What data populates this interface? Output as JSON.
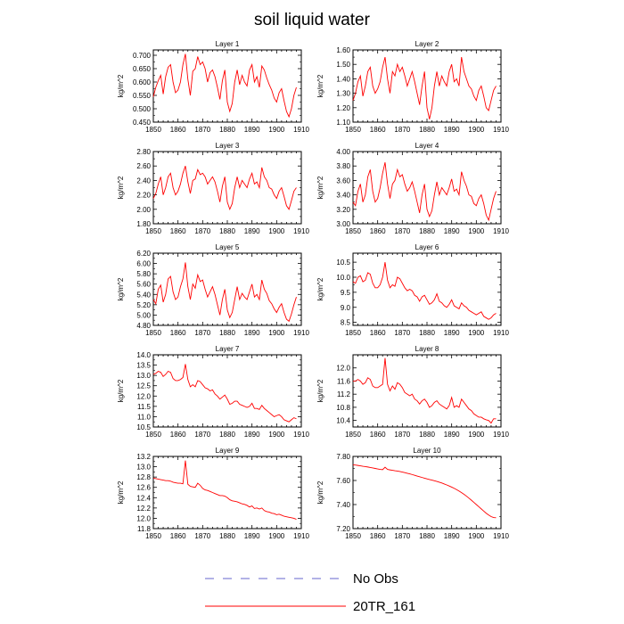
{
  "title": "soil liquid water",
  "line_color": "#ff0000",
  "obs_color": "#6666cc",
  "legend": {
    "obs_label": "No Obs",
    "model_label": "20TR_161"
  },
  "chart_data": [
    {
      "type": "line",
      "title": "Layer 1",
      "ylabel": "kg/m^2",
      "xlim": [
        1850,
        1910
      ],
      "ylim": [
        0.45,
        0.72
      ],
      "xticks": [
        1850,
        1860,
        1870,
        1880,
        1890,
        1900,
        1910
      ],
      "xtick_labels": [
        "1850",
        "1860",
        "1870",
        "1880",
        "1890",
        "1900",
        "1910"
      ],
      "yticks": [
        0.45,
        0.5,
        0.55,
        0.6,
        0.65,
        0.7
      ],
      "ytick_labels": [
        "0.450",
        "0.500",
        "0.550",
        "0.600",
        "0.650",
        "0.700"
      ],
      "x_start": 1850,
      "values": [
        0.545,
        0.58,
        0.605,
        0.625,
        0.555,
        0.62,
        0.655,
        0.665,
        0.6,
        0.56,
        0.57,
        0.6,
        0.665,
        0.705,
        0.61,
        0.55,
        0.64,
        0.65,
        0.695,
        0.665,
        0.675,
        0.65,
        0.6,
        0.635,
        0.645,
        0.62,
        0.58,
        0.535,
        0.605,
        0.645,
        0.525,
        0.49,
        0.52,
        0.6,
        0.645,
        0.59,
        0.625,
        0.6,
        0.585,
        0.645,
        0.665,
        0.6,
        0.62,
        0.58,
        0.66,
        0.645,
        0.615,
        0.59,
        0.57,
        0.54,
        0.525,
        0.56,
        0.575,
        0.53,
        0.49,
        0.47,
        0.5,
        0.55,
        0.58
      ]
    },
    {
      "type": "line",
      "title": "Layer 2",
      "ylabel": "kg/m^2",
      "xlim": [
        1850,
        1910
      ],
      "ylim": [
        1.1,
        1.6
      ],
      "xticks": [
        1850,
        1860,
        1870,
        1880,
        1890,
        1900,
        1910
      ],
      "xtick_labels": [
        "1850",
        "1860",
        "1870",
        "1880",
        "1890",
        "1900",
        "1910"
      ],
      "yticks": [
        1.1,
        1.2,
        1.3,
        1.4,
        1.5,
        1.6
      ],
      "ytick_labels": [
        "1.10",
        "1.20",
        "1.30",
        "1.40",
        "1.50",
        "1.60"
      ],
      "x_start": 1850,
      "values": [
        1.25,
        1.3,
        1.38,
        1.42,
        1.28,
        1.35,
        1.45,
        1.48,
        1.35,
        1.3,
        1.33,
        1.38,
        1.48,
        1.55,
        1.4,
        1.3,
        1.45,
        1.42,
        1.5,
        1.45,
        1.48,
        1.42,
        1.35,
        1.4,
        1.45,
        1.38,
        1.3,
        1.22,
        1.35,
        1.45,
        1.2,
        1.12,
        1.2,
        1.35,
        1.45,
        1.35,
        1.42,
        1.38,
        1.35,
        1.45,
        1.5,
        1.38,
        1.4,
        1.35,
        1.55,
        1.45,
        1.4,
        1.35,
        1.33,
        1.28,
        1.25,
        1.32,
        1.35,
        1.28,
        1.2,
        1.18,
        1.25,
        1.32,
        1.35
      ]
    },
    {
      "type": "line",
      "title": "Layer 3",
      "ylabel": "kg/m^2",
      "xlim": [
        1850,
        1910
      ],
      "ylim": [
        1.8,
        2.8
      ],
      "xticks": [
        1850,
        1860,
        1870,
        1880,
        1890,
        1900,
        1910
      ],
      "xtick_labels": [
        "1850",
        "1860",
        "1870",
        "1880",
        "1890",
        "1900",
        "1910"
      ],
      "yticks": [
        1.8,
        2.0,
        2.2,
        2.4,
        2.6,
        2.8
      ],
      "ytick_labels": [
        "1.80",
        "2.00",
        "2.20",
        "2.40",
        "2.60",
        "2.80"
      ],
      "x_start": 1850,
      "values": [
        2.15,
        2.22,
        2.35,
        2.45,
        2.2,
        2.3,
        2.45,
        2.5,
        2.3,
        2.2,
        2.25,
        2.35,
        2.5,
        2.6,
        2.38,
        2.22,
        2.4,
        2.42,
        2.55,
        2.48,
        2.5,
        2.45,
        2.35,
        2.4,
        2.45,
        2.38,
        2.25,
        2.1,
        2.32,
        2.45,
        2.1,
        2.0,
        2.08,
        2.3,
        2.45,
        2.3,
        2.4,
        2.35,
        2.3,
        2.42,
        2.5,
        2.35,
        2.38,
        2.3,
        2.58,
        2.45,
        2.4,
        2.3,
        2.28,
        2.2,
        2.15,
        2.25,
        2.3,
        2.18,
        2.05,
        2.0,
        2.12,
        2.25,
        2.3
      ]
    },
    {
      "type": "line",
      "title": "Layer 4",
      "ylabel": "kg/m^2",
      "xlim": [
        1850,
        1910
      ],
      "ylim": [
        3.0,
        4.0
      ],
      "xticks": [
        1850,
        1860,
        1870,
        1880,
        1890,
        1900,
        1910
      ],
      "xtick_labels": [
        "1850",
        "1860",
        "1870",
        "1880",
        "1890",
        "1900",
        "1910"
      ],
      "yticks": [
        3.0,
        3.2,
        3.4,
        3.6,
        3.8,
        4.0
      ],
      "ytick_labels": [
        "3.00",
        "3.20",
        "3.40",
        "3.60",
        "3.80",
        "4.00"
      ],
      "x_start": 1850,
      "values": [
        3.3,
        3.25,
        3.45,
        3.55,
        3.3,
        3.4,
        3.65,
        3.75,
        3.45,
        3.3,
        3.35,
        3.5,
        3.7,
        3.85,
        3.55,
        3.35,
        3.55,
        3.6,
        3.75,
        3.65,
        3.68,
        3.55,
        3.45,
        3.5,
        3.58,
        3.45,
        3.3,
        3.15,
        3.4,
        3.55,
        3.2,
        3.1,
        3.18,
        3.4,
        3.58,
        3.4,
        3.5,
        3.45,
        3.4,
        3.5,
        3.62,
        3.45,
        3.48,
        3.4,
        3.72,
        3.6,
        3.52,
        3.4,
        3.38,
        3.28,
        3.25,
        3.35,
        3.4,
        3.28,
        3.12,
        3.05,
        3.2,
        3.35,
        3.45
      ]
    },
    {
      "type": "line",
      "title": "Layer 5",
      "ylabel": "kg/m^2",
      "xlim": [
        1850,
        1910
      ],
      "ylim": [
        4.8,
        6.2
      ],
      "xticks": [
        1850,
        1860,
        1870,
        1880,
        1890,
        1900,
        1910
      ],
      "xtick_labels": [
        "1850",
        "1860",
        "1870",
        "1880",
        "1890",
        "1900",
        "1910"
      ],
      "yticks": [
        4.8,
        5.0,
        5.2,
        5.4,
        5.6,
        5.8,
        6.0,
        6.2
      ],
      "ytick_labels": [
        "4.80",
        "5.00",
        "5.20",
        "5.40",
        "5.60",
        "5.80",
        "6.00",
        "6.20"
      ],
      "x_start": 1850,
      "values": [
        5.3,
        5.22,
        5.5,
        5.58,
        5.25,
        5.4,
        5.7,
        5.75,
        5.45,
        5.3,
        5.35,
        5.55,
        5.7,
        6.02,
        5.55,
        5.3,
        5.6,
        5.52,
        5.78,
        5.65,
        5.68,
        5.5,
        5.35,
        5.45,
        5.55,
        5.4,
        5.2,
        5.0,
        5.3,
        5.5,
        5.1,
        4.95,
        5.05,
        5.3,
        5.55,
        5.3,
        5.42,
        5.35,
        5.3,
        5.45,
        5.6,
        5.35,
        5.4,
        5.3,
        5.68,
        5.5,
        5.42,
        5.28,
        5.22,
        5.12,
        5.05,
        5.15,
        5.22,
        5.05,
        4.92,
        4.88,
        5.02,
        5.2,
        5.35
      ]
    },
    {
      "type": "line",
      "title": "Layer 6",
      "ylabel": "kg/m^2",
      "xlim": [
        1850,
        1910
      ],
      "ylim": [
        8.4,
        10.8
      ],
      "xticks": [
        1850,
        1860,
        1870,
        1880,
        1890,
        1900,
        1910
      ],
      "xtick_labels": [
        "1850",
        "1860",
        "1870",
        "1880",
        "1890",
        "1900",
        "1910"
      ],
      "yticks": [
        8.5,
        9.0,
        9.5,
        10.0,
        10.5
      ],
      "ytick_labels": [
        "8.5",
        "9.0",
        "9.5",
        "10.0",
        "10.5"
      ],
      "x_start": 1850,
      "values": [
        9.85,
        9.8,
        10.0,
        10.05,
        9.85,
        9.9,
        10.15,
        10.1,
        9.8,
        9.65,
        9.65,
        9.75,
        10.0,
        10.5,
        9.9,
        9.65,
        9.75,
        9.7,
        10.0,
        9.95,
        9.8,
        9.65,
        9.55,
        9.6,
        9.55,
        9.4,
        9.35,
        9.2,
        9.35,
        9.4,
        9.25,
        9.1,
        9.15,
        9.25,
        9.45,
        9.2,
        9.15,
        9.05,
        9.0,
        9.1,
        9.25,
        9.05,
        9.0,
        8.95,
        9.15,
        9.05,
        9.0,
        8.9,
        8.85,
        8.8,
        8.75,
        8.8,
        8.85,
        8.7,
        8.65,
        8.6,
        8.65,
        8.75,
        8.8
      ]
    },
    {
      "type": "line",
      "title": "Layer 7",
      "ylabel": "kg/m^2",
      "xlim": [
        1850,
        1910
      ],
      "ylim": [
        10.5,
        14.0
      ],
      "xticks": [
        1850,
        1860,
        1870,
        1880,
        1890,
        1900,
        1910
      ],
      "xtick_labels": [
        "1850",
        "1860",
        "1870",
        "1880",
        "1890",
        "1900",
        "1910"
      ],
      "yticks": [
        10.5,
        11.0,
        11.5,
        12.0,
        12.5,
        13.0,
        13.5,
        14.0
      ],
      "ytick_labels": [
        "10.5",
        "11.0",
        "11.5",
        "12.0",
        "12.5",
        "13.0",
        "13.5",
        "14.0"
      ],
      "x_start": 1850,
      "values": [
        13.05,
        13.1,
        13.2,
        13.15,
        12.95,
        13.05,
        13.2,
        13.15,
        12.85,
        12.75,
        12.75,
        12.8,
        12.9,
        13.55,
        12.8,
        12.45,
        12.55,
        12.45,
        12.75,
        12.7,
        12.55,
        12.4,
        12.35,
        12.25,
        12.3,
        12.1,
        12.0,
        11.85,
        11.95,
        12.05,
        11.85,
        11.6,
        11.65,
        11.75,
        11.75,
        11.6,
        11.55,
        11.5,
        11.45,
        11.5,
        11.65,
        11.4,
        11.4,
        11.35,
        11.55,
        11.4,
        11.3,
        11.2,
        11.1,
        11.0,
        11.05,
        11.1,
        11.0,
        10.85,
        10.8,
        10.75,
        10.85,
        10.95,
        10.9
      ]
    },
    {
      "type": "line",
      "title": "Layer 8",
      "ylabel": "kg/m^2",
      "xlim": [
        1850,
        1910
      ],
      "ylim": [
        10.2,
        12.4
      ],
      "xticks": [
        1850,
        1860,
        1870,
        1880,
        1890,
        1900,
        1910
      ],
      "xtick_labels": [
        "1850",
        "1860",
        "1870",
        "1880",
        "1890",
        "1900",
        "1910"
      ],
      "yticks": [
        10.4,
        10.8,
        11.2,
        11.6,
        12.0
      ],
      "ytick_labels": [
        "10.4",
        "10.8",
        "11.2",
        "11.6",
        "12.0"
      ],
      "x_start": 1850,
      "values": [
        11.6,
        11.6,
        11.65,
        11.6,
        11.5,
        11.55,
        11.7,
        11.65,
        11.45,
        11.4,
        11.4,
        11.45,
        11.5,
        12.3,
        11.5,
        11.3,
        11.45,
        11.35,
        11.55,
        11.5,
        11.4,
        11.25,
        11.2,
        11.15,
        11.2,
        11.05,
        11.0,
        10.9,
        11.0,
        11.05,
        10.95,
        10.8,
        10.85,
        10.95,
        11.0,
        10.9,
        10.85,
        10.8,
        10.75,
        10.85,
        11.1,
        10.8,
        10.85,
        10.8,
        11.05,
        10.95,
        10.85,
        10.75,
        10.7,
        10.6,
        10.55,
        10.5,
        10.5,
        10.45,
        10.42,
        10.4,
        10.32,
        10.45,
        10.45
      ]
    },
    {
      "type": "line",
      "title": "Layer 9",
      "ylabel": "kg/m^2",
      "xlim": [
        1850,
        1910
      ],
      "ylim": [
        11.8,
        13.2
      ],
      "xticks": [
        1850,
        1860,
        1870,
        1880,
        1890,
        1900,
        1910
      ],
      "xtick_labels": [
        "1850",
        "1860",
        "1870",
        "1880",
        "1890",
        "1900",
        "1910"
      ],
      "yticks": [
        11.8,
        12.0,
        12.2,
        12.4,
        12.6,
        12.8,
        13.0,
        13.2
      ],
      "ytick_labels": [
        "11.8",
        "12.0",
        "12.2",
        "12.4",
        "12.6",
        "12.8",
        "13.0",
        "13.2"
      ],
      "x_start": 1850,
      "values": [
        12.78,
        12.77,
        12.76,
        12.75,
        12.74,
        12.73,
        12.73,
        12.72,
        12.7,
        12.69,
        12.68,
        12.68,
        12.67,
        13.12,
        12.66,
        12.62,
        12.61,
        12.6,
        12.68,
        12.64,
        12.58,
        12.55,
        12.54,
        12.52,
        12.5,
        12.48,
        12.46,
        12.44,
        12.44,
        12.43,
        12.4,
        12.36,
        12.34,
        12.33,
        12.32,
        12.3,
        12.28,
        12.27,
        12.25,
        12.22,
        12.24,
        12.19,
        12.2,
        12.18,
        12.2,
        12.15,
        12.13,
        12.12,
        12.1,
        12.09,
        12.07,
        12.08,
        12.06,
        12.04,
        12.03,
        12.02,
        12.01,
        12.0,
        11.98
      ]
    },
    {
      "type": "line",
      "title": "Layer 10",
      "ylabel": "kg/m^2",
      "xlim": [
        1850,
        1910
      ],
      "ylim": [
        7.2,
        7.8
      ],
      "xticks": [
        1850,
        1860,
        1870,
        1880,
        1890,
        1900,
        1910
      ],
      "xtick_labels": [
        "1850",
        "1860",
        "1870",
        "1880",
        "1890",
        "1900",
        "1910"
      ],
      "yticks": [
        7.2,
        7.4,
        7.6,
        7.8
      ],
      "ytick_labels": [
        "7.20",
        "7.40",
        "7.60",
        "7.80"
      ],
      "x_start": 1850,
      "values": [
        7.73,
        7.728,
        7.725,
        7.722,
        7.718,
        7.715,
        7.712,
        7.708,
        7.704,
        7.7,
        7.696,
        7.692,
        7.69,
        7.71,
        7.692,
        7.688,
        7.685,
        7.681,
        7.678,
        7.675,
        7.67,
        7.665,
        7.66,
        7.655,
        7.649,
        7.643,
        7.637,
        7.631,
        7.625,
        7.619,
        7.613,
        7.608,
        7.603,
        7.598,
        7.592,
        7.586,
        7.579,
        7.571,
        7.563,
        7.554,
        7.545,
        7.535,
        7.524,
        7.512,
        7.499,
        7.485,
        7.47,
        7.453,
        7.436,
        7.418,
        7.4,
        7.382,
        7.364,
        7.346,
        7.328,
        7.313,
        7.3,
        7.292,
        7.29
      ]
    }
  ]
}
